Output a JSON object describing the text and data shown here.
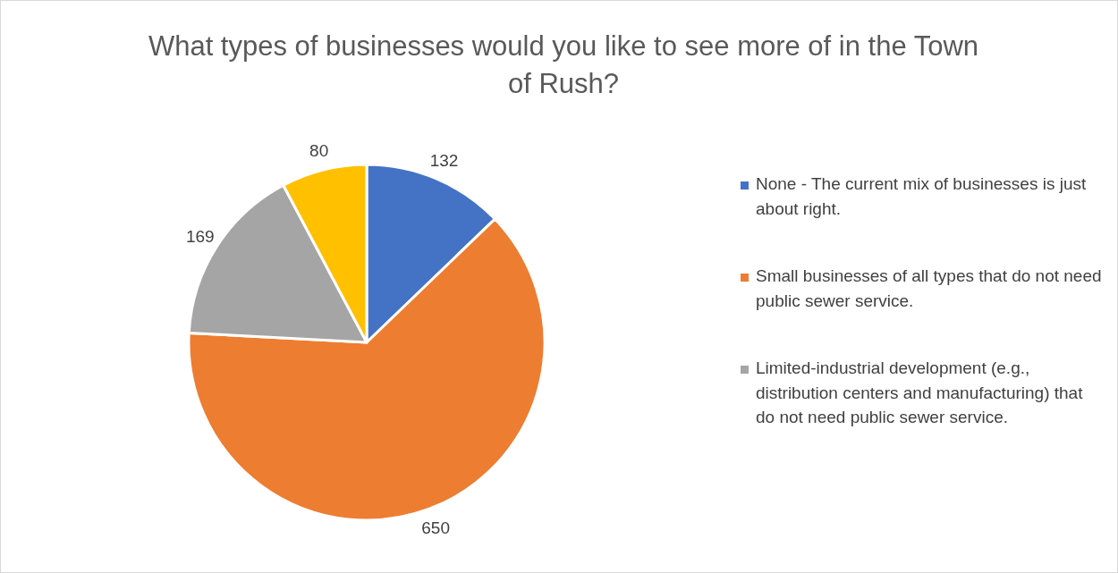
{
  "chart_data": {
    "type": "pie",
    "title": "What types of businesses would you like to see more of in the Town of Rush?",
    "categories": [
      "None - The current mix of businesses is just about right.",
      "Small businesses of all types that do not need public sewer service.",
      "Limited-industrial development (e.g., distribution centers and manufacturing) that do not need public sewer service.",
      null
    ],
    "values": [
      132,
      650,
      169,
      80
    ],
    "colors": [
      "#4472c4",
      "#ed7d31",
      "#a5a5a5",
      "#ffc000"
    ],
    "data_labels": true,
    "legend": "right"
  }
}
